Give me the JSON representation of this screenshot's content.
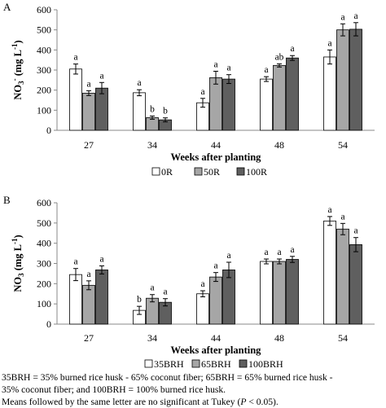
{
  "chart_data": [
    {
      "type": "bar",
      "panel_label": "A",
      "categories": [
        "27",
        "34",
        "44",
        "48",
        "54"
      ],
      "series": [
        {
          "name": "0R",
          "values": [
            305,
            187,
            137,
            255,
            365
          ],
          "errors": [
            25,
            15,
            22,
            12,
            35
          ],
          "letters": [
            "a",
            "a",
            "a",
            "a",
            "a"
          ]
        },
        {
          "name": "50R",
          "values": [
            185,
            63,
            262,
            323,
            500
          ],
          "errors": [
            12,
            8,
            32,
            8,
            30
          ],
          "letters": [
            "a",
            "b",
            "a",
            "ab",
            "a"
          ]
        },
        {
          "name": "100R",
          "values": [
            210,
            52,
            255,
            360,
            503
          ],
          "errors": [
            28,
            10,
            22,
            12,
            33
          ],
          "letters": [
            "a",
            "b",
            "a",
            "a",
            "a"
          ]
        }
      ],
      "ylabel_main": "NO",
      "ylabel_sub": "3",
      "ylabel_sup": "-",
      "ylabel_unit": " (mg L",
      "ylabel_unit_sup": "-1",
      "ylabel_close": ")",
      "xlabel": "Weeks after planting",
      "ylim": [
        0,
        600
      ],
      "yticks": [
        "0",
        "100",
        "200",
        "300",
        "400",
        "500",
        "600"
      ],
      "grid": false,
      "legend_position": "bottom"
    },
    {
      "type": "bar",
      "panel_label": "B",
      "categories": [
        "27",
        "34",
        "44",
        "48",
        "54"
      ],
      "series": [
        {
          "name": "35BRH",
          "values": [
            245,
            68,
            150,
            310,
            510
          ],
          "errors": [
            30,
            20,
            15,
            12,
            22
          ],
          "letters": [
            "a",
            "b",
            "a",
            "a",
            "a"
          ]
        },
        {
          "name": "65BRH",
          "values": [
            192,
            128,
            233,
            310,
            470
          ],
          "errors": [
            22,
            18,
            22,
            12,
            28
          ],
          "letters": [
            "a",
            "a",
            "a",
            "a",
            "a"
          ]
        },
        {
          "name": "100BRH",
          "values": [
            268,
            108,
            268,
            320,
            393
          ],
          "errors": [
            20,
            18,
            38,
            15,
            35
          ],
          "letters": [
            "a",
            "a",
            "a",
            "a",
            "a"
          ]
        }
      ],
      "ylabel_main": "NO",
      "ylabel_sub": "3",
      "ylabel_sup": "",
      "ylabel_unit": " (mg L",
      "ylabel_unit_sup": "-1",
      "ylabel_close": ")",
      "xlabel": "Weeks after planting",
      "ylim": [
        0,
        600
      ],
      "yticks": [
        "0",
        "100",
        "200",
        "300",
        "400",
        "500",
        "600"
      ],
      "grid": false,
      "legend_position": "bottom"
    }
  ],
  "colors": {
    "series1": "#ffffff",
    "series2": "#a6a6a6",
    "series3": "#5f5f5f"
  },
  "caption": {
    "line1": "35BRH = 35% burned rice husk - 65% coconut fiber; 65BRH = 65% burned rice husk -",
    "line2": "35% coconut fiber; and 100BRH = 100% burned rice husk.",
    "line3_pre": "Means followed by the same letter are no significant at Tukey (",
    "line3_p": "P",
    "line3_post": " < 0.05)."
  }
}
